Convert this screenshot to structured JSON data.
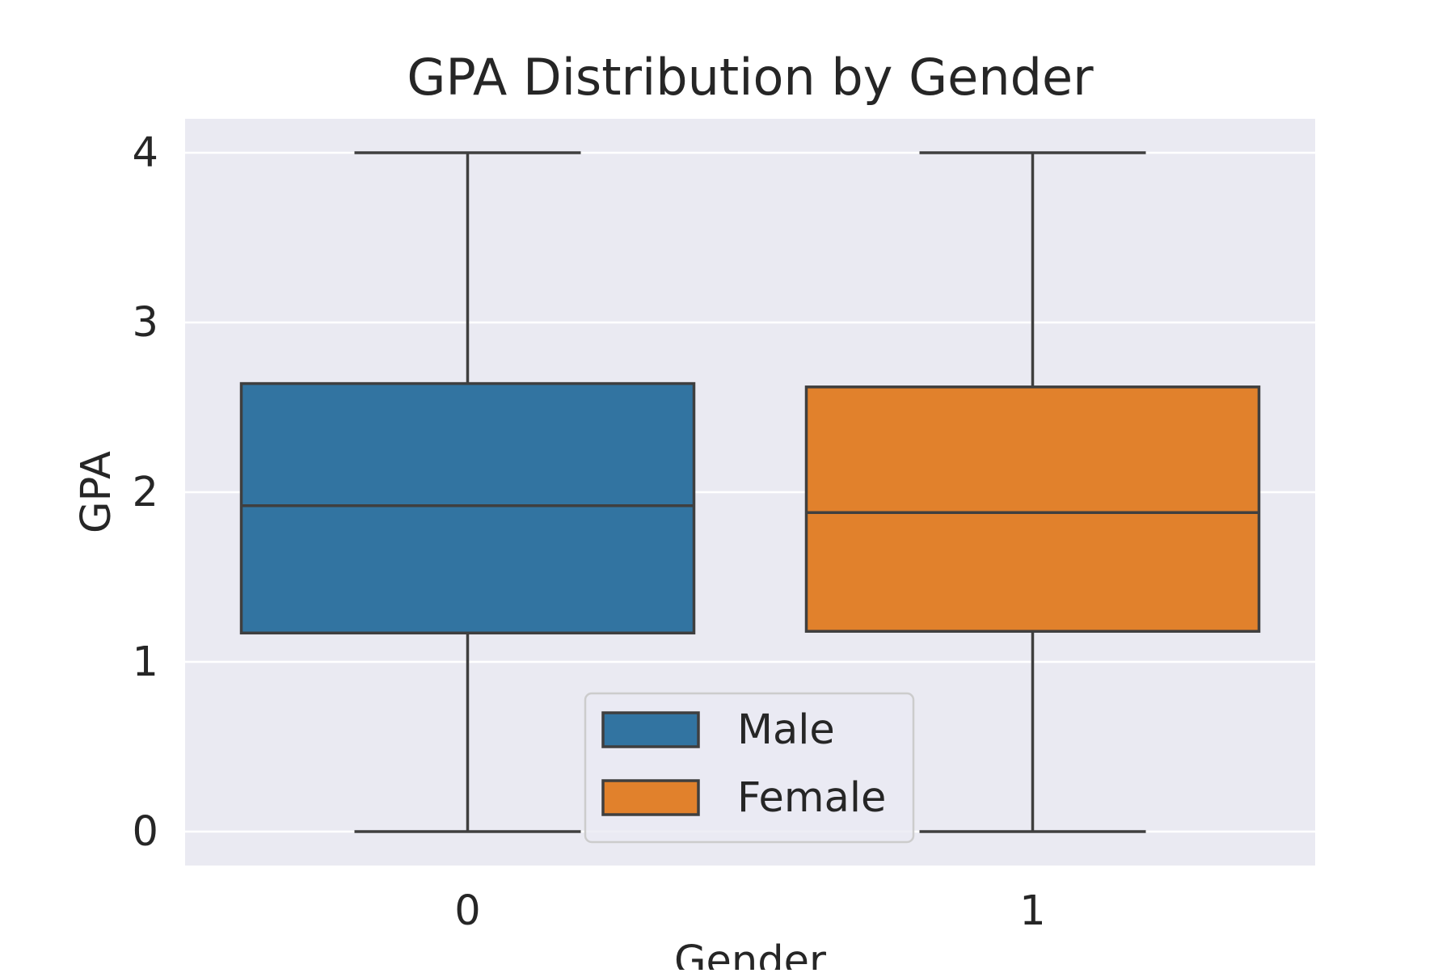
{
  "chart_data": {
    "type": "boxplot",
    "title": "GPA Distribution by Gender",
    "xlabel": "Gender",
    "ylabel": "GPA",
    "categories": [
      "0",
      "1"
    ],
    "ylim": [
      -0.2,
      4.2
    ],
    "y_ticks": [
      "0",
      "1",
      "2",
      "3",
      "4"
    ],
    "grid": true,
    "legend": {
      "placement": "lower center",
      "entries": [
        {
          "label": "Male",
          "color": "#3274a1"
        },
        {
          "label": "Female",
          "color": "#e1812c"
        }
      ]
    },
    "boxes": [
      {
        "category": "0",
        "color": "#3274a1",
        "whisker_low": 0.0,
        "q1": 1.17,
        "median": 1.92,
        "q3": 2.64,
        "whisker_high": 4.0
      },
      {
        "category": "1",
        "color": "#e1812c",
        "whisker_low": 0.0,
        "q1": 1.18,
        "median": 1.88,
        "q3": 2.62,
        "whisker_high": 4.0
      }
    ],
    "colors": {
      "background": "#eaeaf2",
      "grid": "#ffffff",
      "line": "#3f3f3f",
      "text": "#262626"
    }
  }
}
